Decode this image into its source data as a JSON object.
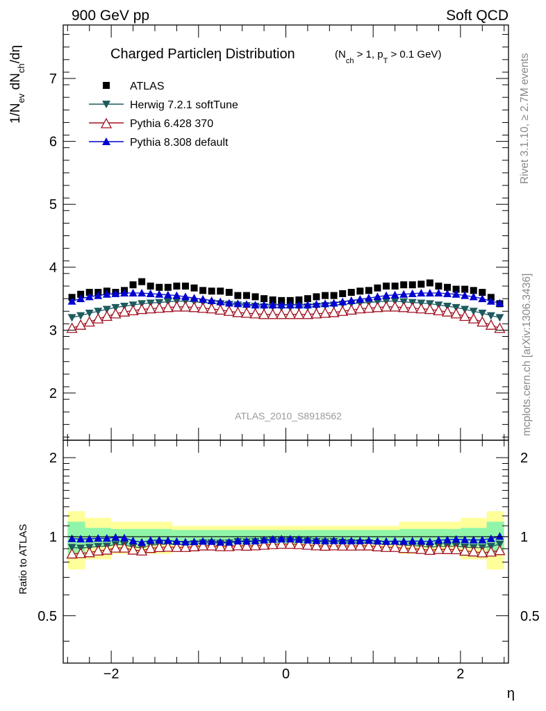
{
  "header": {
    "left": "900 GeV pp",
    "right": "Soft QCD"
  },
  "side_labels": {
    "rivet": "Rivet 3.1.10, ≥ 2.7M events",
    "mcplots": "mcplots.cern.ch [arXiv:1306.3436]"
  },
  "watermark": "ATLAS_2010_S8918562",
  "colors": {
    "atlas": "#000000",
    "herwig": "#1e5b5e",
    "pythia6": "#a01020",
    "pythia8": "#0000d0",
    "band_inner": "#90f5a8",
    "band_outer": "#ffff9a"
  },
  "chart_data": [
    {
      "type": "scatter",
      "title": "Charged Particleη Distribution",
      "title_cuts": "(N_ch > 1, p_T > 0.1 GeV)",
      "xlabel": "η",
      "ylabel": "1/N_ev dN_ch/dη",
      "xlim": [
        -2.55,
        2.55
      ],
      "ylim": [
        1.25,
        7.85
      ],
      "yticks": [
        2,
        3,
        4,
        5,
        6,
        7
      ],
      "yticklabels": [
        "2",
        "3",
        "4",
        "5",
        "6",
        "7"
      ],
      "legend_position": "top-left",
      "x": [
        -2.45,
        -2.35,
        -2.25,
        -2.15,
        -2.05,
        -1.95,
        -1.85,
        -1.75,
        -1.65,
        -1.55,
        -1.45,
        -1.35,
        -1.25,
        -1.15,
        -1.05,
        -0.95,
        -0.85,
        -0.75,
        -0.65,
        -0.55,
        -0.45,
        -0.35,
        -0.25,
        -0.15,
        -0.05,
        0.05,
        0.15,
        0.25,
        0.35,
        0.45,
        0.55,
        0.65,
        0.75,
        0.85,
        0.95,
        1.05,
        1.15,
        1.25,
        1.35,
        1.45,
        1.55,
        1.65,
        1.75,
        1.85,
        1.95,
        2.05,
        2.15,
        2.25,
        2.35,
        2.45
      ],
      "series": [
        {
          "name": "ATLAS",
          "marker": "square",
          "values": [
            3.52,
            3.57,
            3.6,
            3.6,
            3.62,
            3.6,
            3.63,
            3.72,
            3.77,
            3.7,
            3.68,
            3.68,
            3.7,
            3.7,
            3.67,
            3.63,
            3.62,
            3.62,
            3.6,
            3.55,
            3.55,
            3.53,
            3.5,
            3.48,
            3.47,
            3.47,
            3.48,
            3.5,
            3.53,
            3.55,
            3.55,
            3.58,
            3.6,
            3.62,
            3.63,
            3.67,
            3.7,
            3.7,
            3.72,
            3.72,
            3.73,
            3.75,
            3.7,
            3.68,
            3.65,
            3.65,
            3.63,
            3.6,
            3.52,
            3.42
          ]
        },
        {
          "name": "Herwig 7.2.1 softTune",
          "marker": "triangle-down",
          "values": [
            3.2,
            3.23,
            3.27,
            3.3,
            3.33,
            3.36,
            3.38,
            3.4,
            3.42,
            3.43,
            3.44,
            3.45,
            3.46,
            3.46,
            3.45,
            3.44,
            3.43,
            3.42,
            3.41,
            3.4,
            3.39,
            3.38,
            3.37,
            3.37,
            3.36,
            3.36,
            3.37,
            3.37,
            3.38,
            3.39,
            3.4,
            3.41,
            3.42,
            3.43,
            3.44,
            3.45,
            3.46,
            3.46,
            3.45,
            3.44,
            3.43,
            3.42,
            3.4,
            3.38,
            3.36,
            3.33,
            3.3,
            3.27,
            3.23,
            3.2
          ]
        },
        {
          "name": "Pythia 6.428 370",
          "marker": "triangle-open",
          "values": [
            3.03,
            3.08,
            3.13,
            3.18,
            3.22,
            3.26,
            3.29,
            3.31,
            3.33,
            3.34,
            3.35,
            3.36,
            3.37,
            3.37,
            3.36,
            3.35,
            3.34,
            3.32,
            3.3,
            3.28,
            3.27,
            3.26,
            3.25,
            3.25,
            3.25,
            3.25,
            3.25,
            3.25,
            3.26,
            3.27,
            3.28,
            3.3,
            3.32,
            3.34,
            3.35,
            3.36,
            3.37,
            3.37,
            3.36,
            3.35,
            3.34,
            3.33,
            3.31,
            3.29,
            3.26,
            3.22,
            3.18,
            3.13,
            3.08,
            3.03
          ]
        },
        {
          "name": "Pythia 8.308 default",
          "marker": "triangle-up",
          "values": [
            3.46,
            3.5,
            3.53,
            3.55,
            3.57,
            3.58,
            3.59,
            3.59,
            3.59,
            3.58,
            3.57,
            3.56,
            3.55,
            3.53,
            3.51,
            3.49,
            3.47,
            3.45,
            3.43,
            3.42,
            3.41,
            3.4,
            3.4,
            3.4,
            3.4,
            3.4,
            3.4,
            3.4,
            3.41,
            3.42,
            3.43,
            3.45,
            3.47,
            3.49,
            3.51,
            3.53,
            3.55,
            3.56,
            3.57,
            3.58,
            3.59,
            3.59,
            3.59,
            3.58,
            3.57,
            3.55,
            3.53,
            3.5,
            3.46,
            3.43
          ]
        }
      ]
    },
    {
      "type": "scatter",
      "ylabel": "Ratio to ATLAS",
      "xlabel": "η",
      "xlim": [
        -2.55,
        2.55
      ],
      "ylim": [
        0.33,
        2.33
      ],
      "yscale": "log",
      "xticks": [
        -2,
        0,
        2
      ],
      "xticklabels": [
        "−2",
        "0",
        "2"
      ],
      "yticks": [
        0.5,
        1,
        2
      ],
      "yticklabels": [
        "0.5",
        "1",
        "2"
      ],
      "band_edges": [
        -2.5,
        -2.3,
        -2.0,
        -1.3,
        1.3,
        2.0,
        2.3,
        2.5
      ],
      "band_inner_halfwidth": [
        0.14,
        0.08,
        0.07,
        0.06,
        0.07,
        0.08,
        0.14
      ],
      "band_outer_halfwidth": [
        0.25,
        0.18,
        0.14,
        0.1,
        0.14,
        0.18,
        0.25
      ],
      "x": [
        -2.45,
        -2.35,
        -2.25,
        -2.15,
        -2.05,
        -1.95,
        -1.85,
        -1.75,
        -1.65,
        -1.55,
        -1.45,
        -1.35,
        -1.25,
        -1.15,
        -1.05,
        -0.95,
        -0.85,
        -0.75,
        -0.65,
        -0.55,
        -0.45,
        -0.35,
        -0.25,
        -0.15,
        -0.05,
        0.05,
        0.15,
        0.25,
        0.35,
        0.45,
        0.55,
        0.65,
        0.75,
        0.85,
        0.95,
        1.05,
        1.15,
        1.25,
        1.35,
        1.45,
        1.55,
        1.65,
        1.75,
        1.85,
        1.95,
        2.05,
        2.15,
        2.25,
        2.35,
        2.45
      ],
      "series": [
        {
          "name": "Herwig 7.2.1 softTune",
          "marker": "triangle-down",
          "values": [
            0.91,
            0.905,
            0.91,
            0.917,
            0.92,
            0.933,
            0.931,
            0.914,
            0.907,
            0.927,
            0.935,
            0.938,
            0.935,
            0.935,
            0.94,
            0.948,
            0.948,
            0.945,
            0.947,
            0.958,
            0.955,
            0.958,
            0.963,
            0.968,
            0.968,
            0.968,
            0.968,
            0.963,
            0.958,
            0.955,
            0.958,
            0.952,
            0.95,
            0.948,
            0.948,
            0.94,
            0.935,
            0.935,
            0.927,
            0.925,
            0.92,
            0.912,
            0.918,
            0.918,
            0.921,
            0.912,
            0.909,
            0.908,
            0.918,
            0.936
          ]
        },
        {
          "name": "Pythia 6.428 370",
          "marker": "triangle-open",
          "values": [
            0.86,
            0.863,
            0.87,
            0.883,
            0.89,
            0.906,
            0.906,
            0.89,
            0.883,
            0.903,
            0.91,
            0.913,
            0.911,
            0.911,
            0.916,
            0.923,
            0.923,
            0.917,
            0.917,
            0.924,
            0.921,
            0.924,
            0.929,
            0.934,
            0.937,
            0.937,
            0.934,
            0.929,
            0.924,
            0.921,
            0.924,
            0.922,
            0.922,
            0.923,
            0.923,
            0.916,
            0.911,
            0.911,
            0.903,
            0.901,
            0.895,
            0.888,
            0.895,
            0.894,
            0.893,
            0.882,
            0.876,
            0.869,
            0.875,
            0.886
          ]
        },
        {
          "name": "Pythia 8.308 default",
          "marker": "triangle-up",
          "values": [
            0.983,
            0.98,
            0.981,
            0.986,
            0.986,
            0.994,
            0.989,
            0.965,
            0.952,
            0.968,
            0.97,
            0.967,
            0.959,
            0.954,
            0.956,
            0.961,
            0.959,
            0.953,
            0.953,
            0.963,
            0.961,
            0.963,
            0.971,
            0.977,
            0.98,
            0.98,
            0.977,
            0.971,
            0.966,
            0.963,
            0.966,
            0.964,
            0.964,
            0.964,
            0.967,
            0.962,
            0.959,
            0.962,
            0.96,
            0.962,
            0.962,
            0.957,
            0.97,
            0.973,
            0.978,
            0.973,
            0.972,
            0.972,
            0.983,
            1.003
          ]
        }
      ]
    }
  ]
}
